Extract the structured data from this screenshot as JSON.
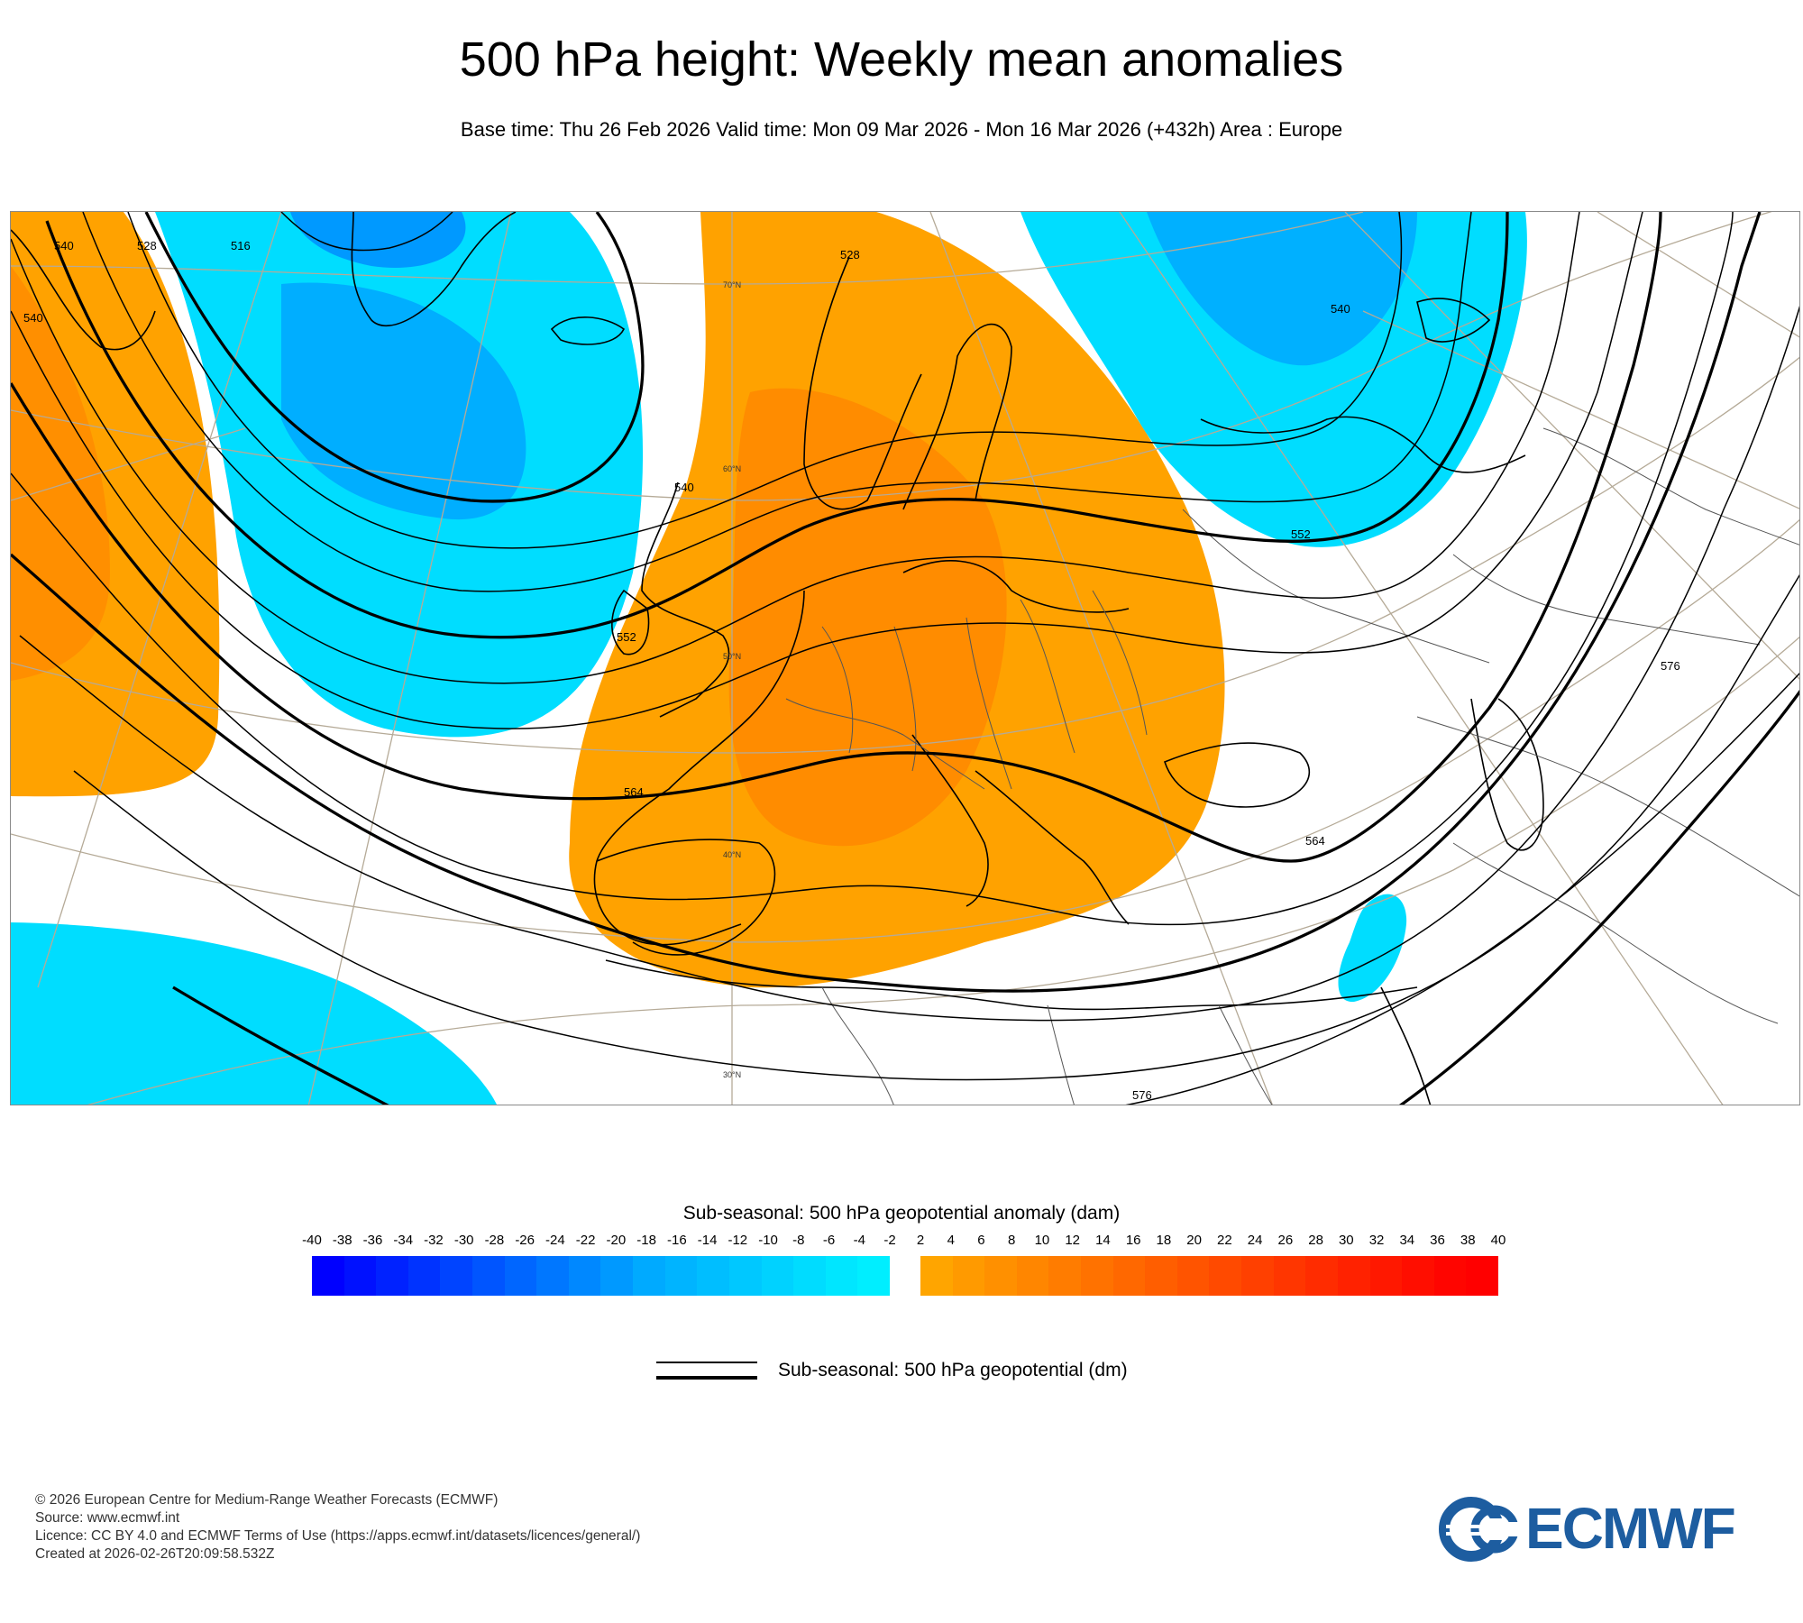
{
  "title": "500 hPa height: Weekly mean anomalies",
  "subtitle": "Base time: Thu 26 Feb 2026 Valid time: Mon 09 Mar 2026 - Mon 16 Mar 2026 (+432h) Area : Europe",
  "map": {
    "contour_labels": [
      "516",
      "528",
      "540",
      "540",
      "528",
      "540",
      "552",
      "552",
      "564",
      "564",
      "576",
      "576",
      "540"
    ],
    "latitude_labels": [
      "70°N",
      "60°N",
      "50°N",
      "40°N",
      "30°N"
    ],
    "anomaly_colors": {
      "positive": "#ffa200",
      "positive_strong": "#ff8800",
      "negative": "#00ddff",
      "negative_strong": "#00aaff"
    }
  },
  "colorbar": {
    "title": "Sub-seasonal: 500 hPa geopotential anomaly (dam)",
    "negative_ticks": [
      "-40",
      "-38",
      "-36",
      "-34",
      "-32",
      "-30",
      "-28",
      "-26",
      "-24",
      "-22",
      "-20",
      "-18",
      "-16",
      "-14",
      "-12",
      "-10",
      "-8",
      "-6",
      "-4",
      "-2"
    ],
    "positive_ticks": [
      "2",
      "4",
      "6",
      "8",
      "10",
      "12",
      "14",
      "16",
      "18",
      "20",
      "22",
      "24",
      "26",
      "28",
      "30",
      "32",
      "34",
      "36",
      "38",
      "40"
    ],
    "negative_colors": [
      "#0000ff",
      "#0011ff",
      "#0022ff",
      "#0033ff",
      "#0044ff",
      "#0055ff",
      "#0066ff",
      "#0077ff",
      "#0088ff",
      "#0099ff",
      "#00aaff",
      "#00b4ff",
      "#00beff",
      "#00c8ff",
      "#00d2ff",
      "#00dcff",
      "#00e6ff",
      "#00eeff"
    ],
    "positive_colors": [
      "#ffa500",
      "#ff9a00",
      "#ff9000",
      "#ff8600",
      "#ff7c00",
      "#ff7200",
      "#ff6800",
      "#ff5e00",
      "#ff5400",
      "#ff4a00",
      "#ff4000",
      "#ff3600",
      "#ff2c00",
      "#ff2200",
      "#ff1800",
      "#ff0e00",
      "#ff0500",
      "#ff0000"
    ]
  },
  "legend": {
    "label": "Sub-seasonal: 500 hPa geopotential (dm)"
  },
  "footer": {
    "line1": "© 2026 European Centre for Medium-Range Weather Forecasts (ECMWF)",
    "line2": "Source: www.ecmwf.int",
    "line3": "Licence: CC BY 4.0 and ECMWF Terms of Use (https://apps.ecmwf.int/datasets/licences/general/)",
    "line4": "Created at 2026-02-26T20:09:58.532Z"
  },
  "logo": {
    "text": "ECMWF",
    "color": "#1d5da0",
    "icon": "ecmwf-logo-icon"
  }
}
